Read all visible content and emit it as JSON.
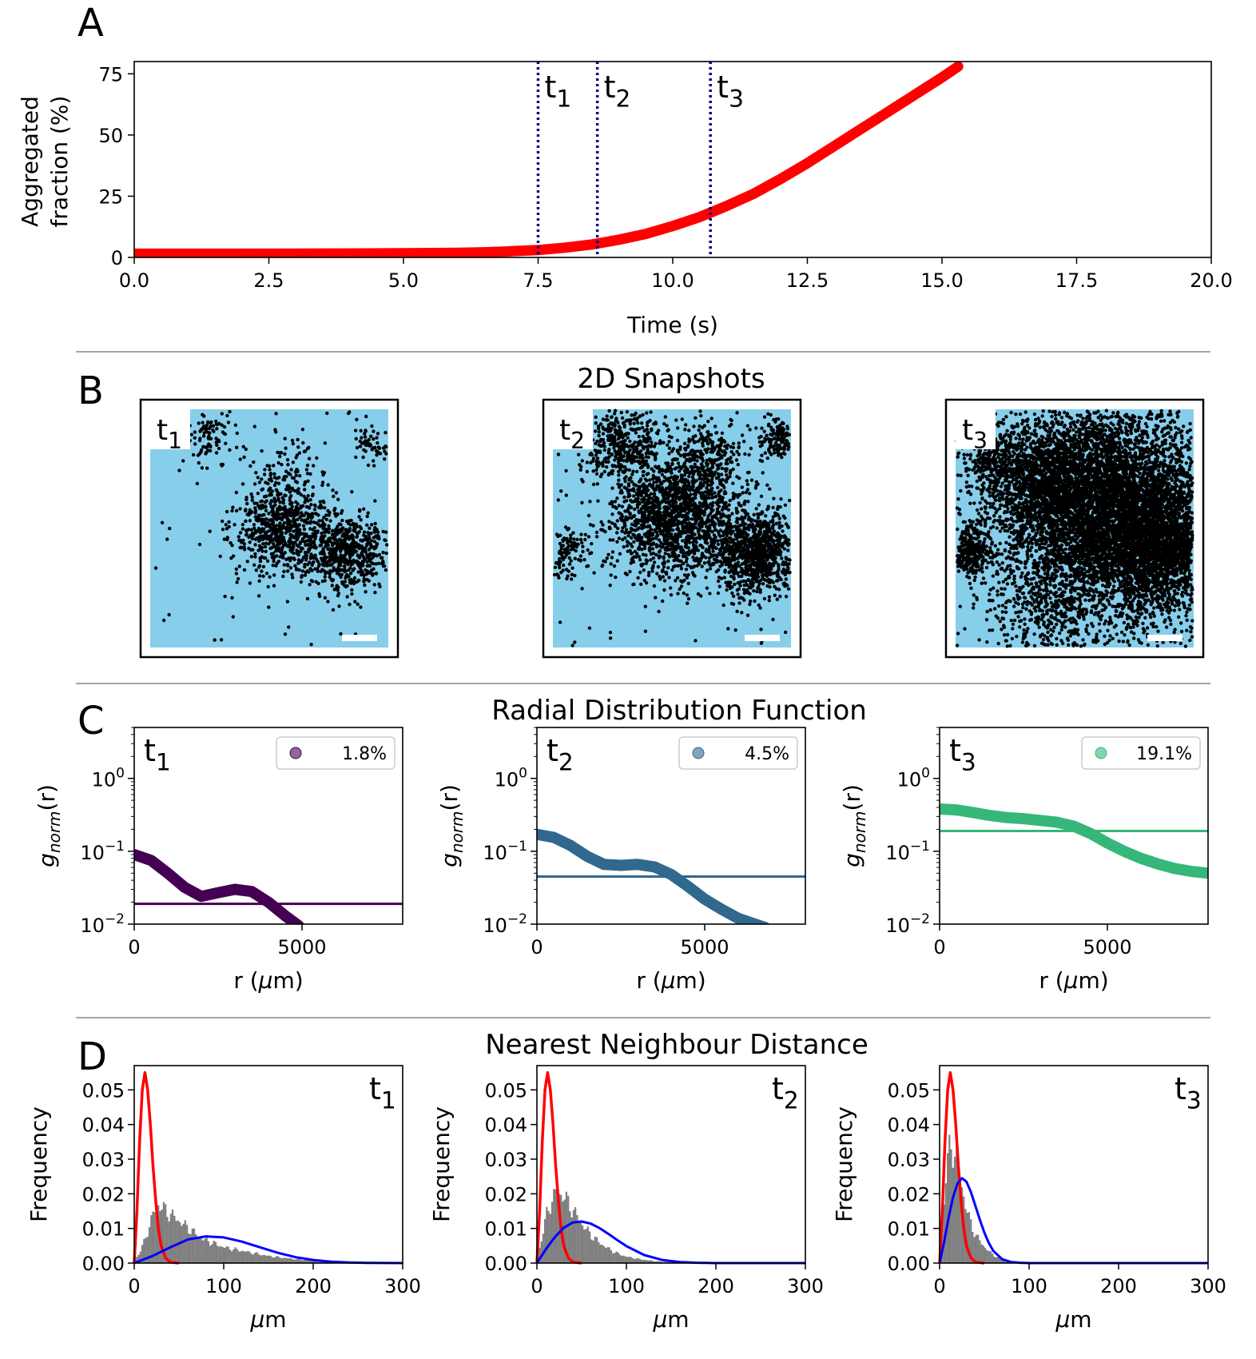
{
  "figure": {
    "panel_labels": [
      "A",
      "B",
      "C",
      "D"
    ],
    "section_titles": {
      "B": "2D Snapshots",
      "C": "Radial Distribution Function",
      "D": "Nearest Neighbour Distance"
    },
    "time_markers": [
      {
        "base": "t",
        "sub": "1"
      },
      {
        "base": "t",
        "sub": "2"
      },
      {
        "base": "t",
        "sub": "3"
      }
    ],
    "colors": {
      "aggregation_curve": "#ff0000",
      "marker_line": "#00008b",
      "snapshot_bg": "#87ceeb",
      "particles": "#000000",
      "rdf_t1": "#440154",
      "rdf_t2": "#31688e",
      "rdf_t3": "#35b779",
      "hist": "#808080",
      "fit_red": "#ff0000",
      "fit_blue": "#0000ff"
    }
  },
  "chart_data": [
    {
      "id": "A",
      "type": "line",
      "title": "",
      "xlabel": "Time (s)",
      "ylabel_lines": [
        "Aggregated",
        "fraction (%)"
      ],
      "xlim": [
        0,
        20
      ],
      "ylim": [
        0,
        80
      ],
      "xticks": [
        "0.0",
        "2.5",
        "5.0",
        "7.5",
        "10.0",
        "12.5",
        "15.0",
        "17.5",
        "20.0"
      ],
      "yticks": [
        "0",
        "25",
        "50",
        "75"
      ],
      "x": [
        0,
        2,
        4,
        5,
        6,
        6.5,
        7,
        7.5,
        8,
        8.5,
        9,
        9.5,
        10,
        10.5,
        11,
        11.5,
        12,
        12.5,
        13,
        13.5,
        14,
        14.5,
        15,
        15.3
      ],
      "y": [
        1.5,
        1.5,
        1.6,
        1.7,
        1.9,
        2.1,
        2.5,
        3,
        4,
        5.3,
        7.2,
        9.6,
        12.8,
        16.5,
        21,
        26,
        32,
        38.5,
        45.5,
        52.5,
        59.5,
        66.5,
        73.5,
        78
      ],
      "markers": [
        {
          "x": 7.5,
          "label": "t",
          "sub": "1"
        },
        {
          "x": 8.6,
          "label": "t",
          "sub": "2"
        },
        {
          "x": 10.7,
          "label": "t",
          "sub": "3"
        }
      ]
    },
    {
      "id": "C",
      "type": "line",
      "title": "Radial Distribution Function",
      "xlabel_text": "r (",
      "xlabel_mu": "μ",
      "xlabel_unit": "m)",
      "ylabel_g": "g",
      "ylabel_sub": "norm",
      "ylabel_arg": "(r)",
      "yscale": "log",
      "xlim": [
        0,
        8000
      ],
      "ylim": [
        0.01,
        5
      ],
      "xticks": [
        "0",
        "5000"
      ],
      "xtick_values": [
        0,
        5000
      ],
      "yticks_base": "10",
      "yticks_exp": [
        "0",
        "−1",
        "−2"
      ],
      "ytick_values": [
        1,
        0.1,
        0.01
      ],
      "panels": [
        {
          "label": "t",
          "sub": "1",
          "legend": "1.8%",
          "baseline": 0.019,
          "x": [
            0,
            500,
            1000,
            1500,
            2000,
            2500,
            3000,
            3500,
            4000,
            4500,
            4900
          ],
          "y": [
            0.09,
            0.075,
            0.05,
            0.032,
            0.024,
            0.027,
            0.03,
            0.028,
            0.02,
            0.013,
            0.0095
          ]
        },
        {
          "label": "t",
          "sub": "2",
          "legend": "4.5%",
          "baseline": 0.045,
          "x": [
            0,
            500,
            1000,
            1500,
            2000,
            2500,
            3000,
            3500,
            4000,
            4500,
            5000,
            5500,
            6000,
            6500,
            6800
          ],
          "y": [
            0.17,
            0.155,
            0.12,
            0.085,
            0.066,
            0.064,
            0.066,
            0.061,
            0.048,
            0.033,
            0.022,
            0.016,
            0.012,
            0.01,
            0.009
          ]
        },
        {
          "label": "t",
          "sub": "3",
          "legend": "19.1%",
          "baseline": 0.19,
          "x": [
            0,
            500,
            1000,
            1500,
            2000,
            2500,
            3000,
            3500,
            4000,
            4500,
            5000,
            5500,
            6000,
            6500,
            7000,
            7500,
            8000
          ],
          "y": [
            0.38,
            0.37,
            0.34,
            0.31,
            0.29,
            0.28,
            0.265,
            0.25,
            0.22,
            0.175,
            0.13,
            0.1,
            0.08,
            0.067,
            0.058,
            0.053,
            0.05
          ]
        }
      ]
    },
    {
      "id": "D",
      "type": "bar",
      "title": "Nearest Neighbour Distance",
      "xlabel_mu": "μ",
      "xlabel_unit": "m",
      "ylabel": "Frequency",
      "xlim": [
        0,
        300
      ],
      "ylim": [
        0,
        0.057
      ],
      "xticks": [
        "0",
        "100",
        "200",
        "300"
      ],
      "xtick_values": [
        0,
        100,
        200,
        300
      ],
      "yticks": [
        "0.00",
        "0.01",
        "0.02",
        "0.03",
        "0.04",
        "0.05"
      ],
      "ytick_values": [
        0,
        0.01,
        0.02,
        0.03,
        0.04,
        0.05
      ],
      "panels": [
        {
          "label": "t",
          "sub": "1",
          "hist_x": [
            0,
            5,
            10,
            15,
            20,
            25,
            30,
            35,
            40,
            45,
            50,
            55,
            60,
            65,
            70,
            75,
            80,
            85,
            90,
            95,
            100,
            110,
            120,
            130,
            140,
            150,
            160,
            170,
            180,
            190,
            200,
            220,
            240,
            260,
            280
          ],
          "hist_y": [
            0.001,
            0.003,
            0.006,
            0.01,
            0.014,
            0.017,
            0.016,
            0.015,
            0.014,
            0.013,
            0.012,
            0.011,
            0.01,
            0.009,
            0.008,
            0.007,
            0.0065,
            0.006,
            0.0055,
            0.005,
            0.0045,
            0.004,
            0.0035,
            0.003,
            0.0025,
            0.002,
            0.0017,
            0.0014,
            0.0011,
            0.0009,
            0.0007,
            0.0005,
            0.0003,
            0.0002,
            0.0001
          ],
          "red_x": [
            0,
            3,
            6,
            9,
            12,
            15,
            18,
            21,
            24,
            27,
            30,
            35,
            40,
            50
          ],
          "red_y": [
            0,
            0.015,
            0.035,
            0.05,
            0.055,
            0.05,
            0.04,
            0.028,
            0.018,
            0.01,
            0.005,
            0.0015,
            0.0003,
            0
          ],
          "blue_x": [
            0,
            20,
            40,
            60,
            80,
            100,
            120,
            140,
            160,
            180,
            200,
            220,
            240,
            260,
            300
          ],
          "blue_y": [
            0,
            0.002,
            0.0045,
            0.0068,
            0.0077,
            0.0074,
            0.0062,
            0.0046,
            0.003,
            0.0017,
            0.0009,
            0.0004,
            0.00015,
            5e-05,
            0
          ]
        },
        {
          "label": "t",
          "sub": "2",
          "hist_x": [
            0,
            5,
            10,
            15,
            20,
            25,
            30,
            35,
            40,
            45,
            50,
            55,
            60,
            65,
            70,
            75,
            80,
            85,
            90,
            95,
            100,
            110,
            120,
            130,
            140,
            150,
            160,
            170,
            180
          ],
          "hist_y": [
            0.002,
            0.008,
            0.014,
            0.018,
            0.02,
            0.02,
            0.019,
            0.017,
            0.015,
            0.013,
            0.011,
            0.0095,
            0.008,
            0.0068,
            0.0057,
            0.0048,
            0.004,
            0.0033,
            0.0027,
            0.0022,
            0.0018,
            0.0013,
            0.0009,
            0.0006,
            0.0004,
            0.0003,
            0.0002,
            0.0001,
            5e-05
          ],
          "red_x": [
            0,
            3,
            6,
            9,
            12,
            15,
            18,
            21,
            24,
            27,
            30,
            35,
            40,
            50
          ],
          "red_y": [
            0,
            0.015,
            0.035,
            0.05,
            0.055,
            0.05,
            0.04,
            0.028,
            0.018,
            0.01,
            0.005,
            0.0015,
            0.0003,
            0
          ],
          "blue_x": [
            0,
            10,
            20,
            30,
            40,
            50,
            60,
            70,
            80,
            90,
            100,
            120,
            140,
            160,
            180,
            200,
            300
          ],
          "blue_y": [
            0,
            0.004,
            0.0075,
            0.0102,
            0.0117,
            0.012,
            0.0114,
            0.0101,
            0.0084,
            0.0066,
            0.0049,
            0.0023,
            0.0009,
            0.0003,
            0.0001,
            0,
            0
          ]
        },
        {
          "label": "t",
          "sub": "3",
          "hist_x": [
            0,
            3,
            6,
            9,
            12,
            15,
            18,
            21,
            24,
            27,
            30,
            33,
            36,
            40,
            45,
            50,
            55,
            60,
            65,
            70,
            75,
            80,
            90
          ],
          "hist_y": [
            0.005,
            0.015,
            0.025,
            0.031,
            0.034,
            0.033,
            0.03,
            0.026,
            0.022,
            0.018,
            0.015,
            0.012,
            0.01,
            0.008,
            0.006,
            0.0045,
            0.0032,
            0.0022,
            0.0015,
            0.001,
            0.0006,
            0.0003,
            0.0001
          ],
          "red_x": [
            0,
            3,
            6,
            9,
            12,
            15,
            18,
            21,
            24,
            27,
            30,
            35,
            40,
            50
          ],
          "red_y": [
            0,
            0.015,
            0.035,
            0.05,
            0.055,
            0.05,
            0.04,
            0.028,
            0.018,
            0.01,
            0.005,
            0.0015,
            0.0003,
            0
          ],
          "blue_x": [
            0,
            5,
            10,
            15,
            20,
            25,
            30,
            35,
            40,
            45,
            50,
            55,
            60,
            70,
            80,
            90,
            100,
            300
          ],
          "blue_y": [
            0,
            0.006,
            0.013,
            0.019,
            0.023,
            0.0245,
            0.0235,
            0.0205,
            0.0165,
            0.0125,
            0.0088,
            0.0058,
            0.0035,
            0.0011,
            0.0003,
            0.0001,
            0,
            0
          ]
        }
      ]
    }
  ]
}
